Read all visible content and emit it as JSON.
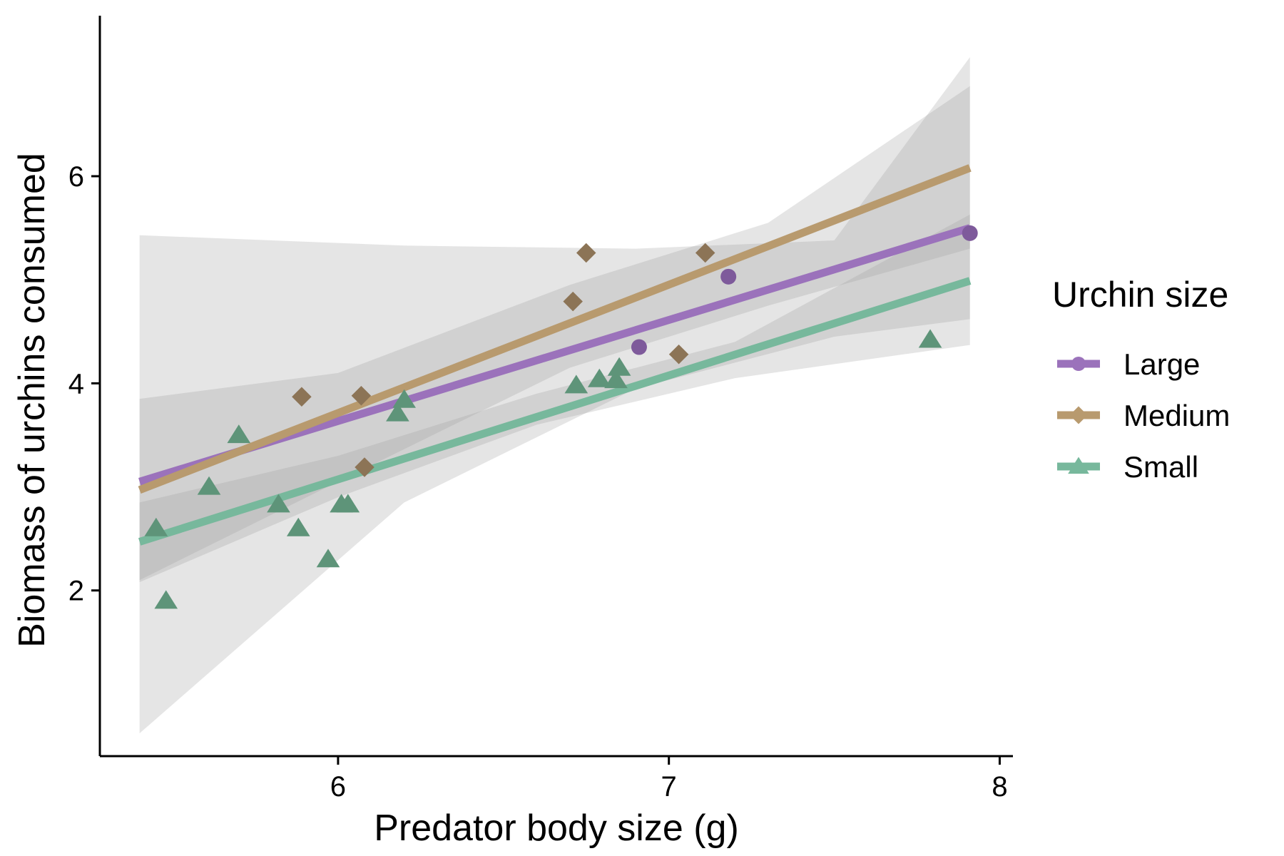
{
  "chart_data": {
    "type": "scatter",
    "title": "",
    "xlabel": "Predator body size (g)",
    "ylabel": "Biomass of urchins consumed",
    "xlim": [
      5.28,
      8.04
    ],
    "ylim": [
      0.4,
      7.55
    ],
    "x_ticks": [
      6,
      7,
      8
    ],
    "y_ticks": [
      2,
      4,
      6
    ],
    "grid": false,
    "legend": {
      "title": "Urchin size",
      "position": "right",
      "items": [
        {
          "name": "Large",
          "color": "#9B72BB",
          "marker": "circle"
        },
        {
          "name": "Medium",
          "color": "#B89A6E",
          "marker": "diamond"
        },
        {
          "name": "Small",
          "color": "#77B89C",
          "marker": "triangle"
        }
      ]
    },
    "series": [
      {
        "name": "Large",
        "color": "#9B72BB",
        "point_color": "#7E5A9B",
        "marker": "circle",
        "points": [
          [
            6.91,
            4.35
          ],
          [
            7.18,
            5.03
          ],
          [
            7.91,
            5.45
          ]
        ],
        "fit": {
          "x": [
            5.4,
            7.91
          ],
          "y": [
            3.05,
            5.5
          ]
        },
        "ci": {
          "x": [
            5.4,
            6.2,
            6.9,
            7.5,
            7.91
          ],
          "lower": [
            0.62,
            2.85,
            3.95,
            4.45,
            4.62
          ],
          "upper": [
            5.43,
            5.33,
            5.3,
            5.38,
            7.15
          ]
        }
      },
      {
        "name": "Medium",
        "color": "#B89A6E",
        "point_color": "#8C7456",
        "marker": "diamond",
        "points": [
          [
            5.89,
            3.87
          ],
          [
            6.07,
            3.88
          ],
          [
            6.08,
            3.19
          ],
          [
            6.71,
            4.79
          ],
          [
            6.75,
            5.26
          ],
          [
            7.03,
            4.28
          ],
          [
            7.11,
            5.26
          ]
        ],
        "fit": {
          "x": [
            5.4,
            7.91
          ],
          "y": [
            2.97,
            6.08
          ]
        },
        "ci": {
          "x": [
            5.4,
            6.0,
            6.7,
            7.3,
            7.91
          ],
          "lower": [
            2.1,
            3.05,
            4.15,
            4.75,
            5.3
          ],
          "upper": [
            3.85,
            4.1,
            4.95,
            5.55,
            6.87
          ]
        }
      },
      {
        "name": "Small",
        "color": "#77B89C",
        "point_color": "#5E9479",
        "marker": "triangle",
        "points": [
          [
            5.45,
            2.6
          ],
          [
            5.48,
            1.9
          ],
          [
            5.61,
            3.0
          ],
          [
            5.7,
            3.5
          ],
          [
            5.82,
            2.83
          ],
          [
            5.88,
            2.6
          ],
          [
            5.97,
            2.3
          ],
          [
            6.01,
            2.83
          ],
          [
            6.03,
            2.83
          ],
          [
            6.18,
            3.71
          ],
          [
            6.2,
            3.84
          ],
          [
            6.72,
            3.98
          ],
          [
            6.79,
            4.04
          ],
          [
            6.84,
            4.03
          ],
          [
            6.85,
            4.15
          ],
          [
            7.79,
            4.42
          ]
        ],
        "fit": {
          "x": [
            5.4,
            7.91
          ],
          "y": [
            2.47,
            4.99
          ]
        },
        "ci": {
          "x": [
            5.4,
            6.0,
            6.6,
            7.2,
            7.91
          ],
          "lower": [
            2.08,
            2.9,
            3.6,
            4.05,
            4.37
          ],
          "upper": [
            2.85,
            3.3,
            3.9,
            4.4,
            5.63
          ]
        }
      }
    ]
  }
}
